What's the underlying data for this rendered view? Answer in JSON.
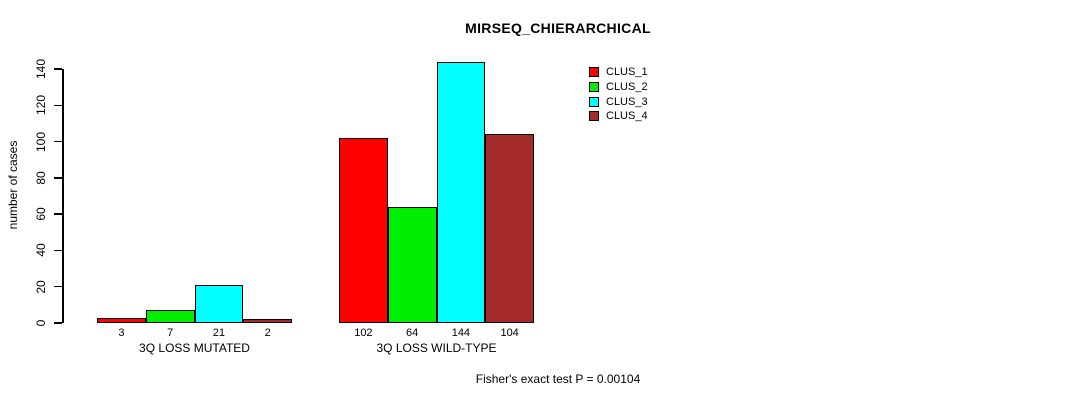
{
  "chart_data": {
    "type": "bar",
    "title": "MIRSEQ_CHIERARCHICAL",
    "ylabel": "number of cases",
    "ylim": [
      0,
      140
    ],
    "yticks": [
      0,
      20,
      40,
      60,
      80,
      100,
      120,
      140
    ],
    "grid": false,
    "legend_position": "top-right",
    "categories": [
      "3Q LOSS MUTATED",
      "3Q LOSS WILD-TYPE"
    ],
    "series": [
      {
        "name": "CLUS_1",
        "color": "#FF0000",
        "values": [
          3,
          102
        ]
      },
      {
        "name": "CLUS_2",
        "color": "#00EE00",
        "values": [
          7,
          64
        ]
      },
      {
        "name": "CLUS_3",
        "color": "#00FFFF",
        "values": [
          21,
          144
        ]
      },
      {
        "name": "CLUS_4",
        "color": "#A52A2A",
        "values": [
          2,
          104
        ]
      }
    ],
    "bar_value_labels": [
      [
        "3",
        "7",
        "21",
        "2"
      ],
      [
        "102",
        "64",
        "144",
        "104"
      ]
    ],
    "annotation": "Fisher's exact test P = 0.00104"
  }
}
